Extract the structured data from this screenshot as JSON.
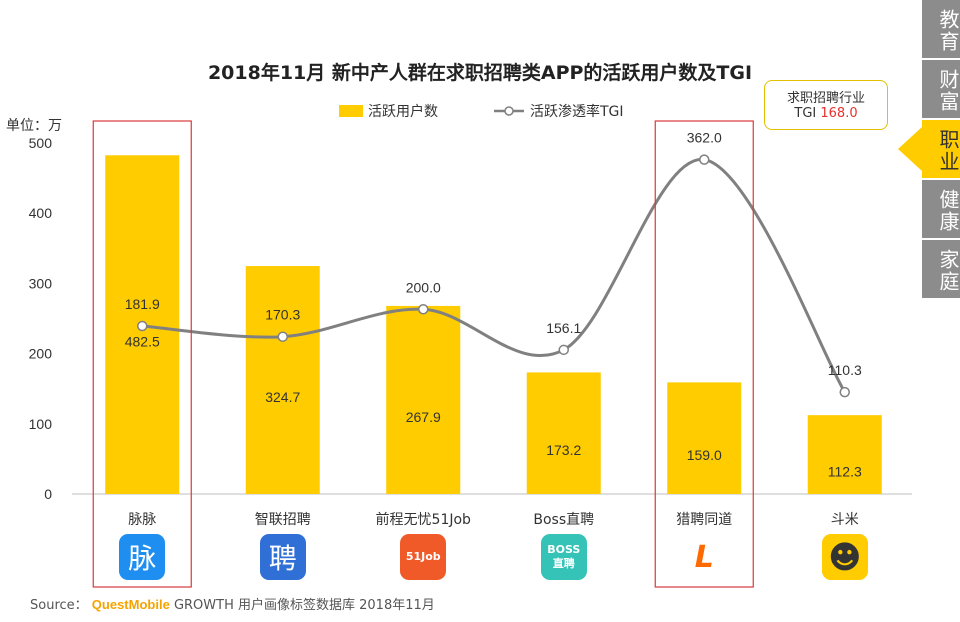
{
  "chart_data": {
    "type": "bar",
    "title": "2018年11月 新中产人群在求职招聘类APP的活跃用户数及TGI",
    "unit_label": "单位：万",
    "categories": [
      "脉脉",
      "智联招聘",
      "前程无忧51Job",
      "Boss直聘",
      "猎聘同道",
      "斗米"
    ],
    "series": [
      {
        "name": "活跃用户数",
        "kind": "bar",
        "color": "#ffcc00",
        "values": [
          482.5,
          324.7,
          267.9,
          173.2,
          159.0,
          112.3
        ],
        "labels": [
          "482.5",
          "324.7",
          "267.9",
          "173.2",
          "159.0",
          "112.3"
        ]
      },
      {
        "name": "活跃渗透率TGI",
        "kind": "line",
        "color": "#808080",
        "values": [
          181.9,
          170.3,
          200.0,
          156.1,
          362.0,
          110.3
        ],
        "labels": [
          "181.9",
          "170.3",
          "200.0",
          "156.1",
          "362.0",
          "110.3"
        ]
      }
    ],
    "yticks": [
      "0",
      "100",
      "200",
      "300",
      "400",
      "500"
    ],
    "ylim": [
      0,
      500
    ],
    "tgi_scale_max": 380,
    "highlight_categories": [
      0,
      4
    ],
    "highlight_color": "#d93a3a",
    "legend_position": "top-center",
    "grid": false
  },
  "industry_box": {
    "line1": "求职招聘行业",
    "tgi_label": "TGI",
    "tgi_value": "168.0"
  },
  "side_nav": [
    {
      "label": "教育",
      "active": false
    },
    {
      "label": "财富",
      "active": false
    },
    {
      "label": "职业",
      "active": true
    },
    {
      "label": "健康",
      "active": false
    },
    {
      "label": "家庭",
      "active": false
    }
  ],
  "app_icons": [
    {
      "glyph": "脉",
      "bg": "#1f8ef1",
      "name": "maimai-icon"
    },
    {
      "glyph": "聘",
      "bg": "#2f6fd6",
      "name": "zhilian-icon"
    },
    {
      "glyph": "51Job",
      "bg": "#f05a28",
      "name": "51job-icon"
    },
    {
      "glyph": "BOSS 直聘",
      "bg": "#35c2b7",
      "name": "boss-icon"
    },
    {
      "glyph": "L",
      "bg": "#ffffff",
      "name": "liepin-icon"
    },
    {
      "glyph": "☻",
      "bg": "#ffcc00",
      "name": "doumi-icon"
    }
  ],
  "source": {
    "prefix": "Source：",
    "brand": "QuestMobile",
    "text": "GROWTH 用户画像标签数据库 2018年11月"
  }
}
